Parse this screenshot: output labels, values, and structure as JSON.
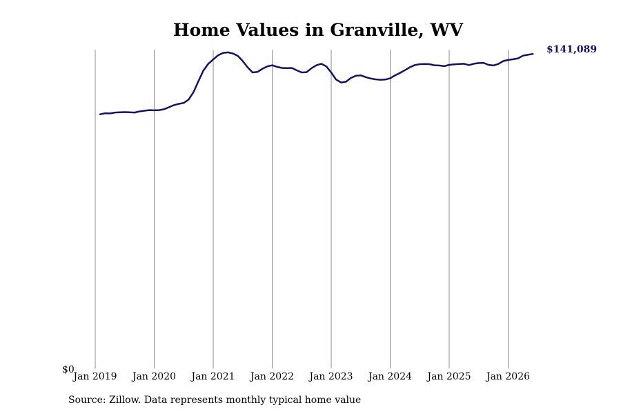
{
  "chart_data": {
    "type": "line",
    "title": "Home Values in Granville, WV",
    "source": "Source: Zillow. Data represents monthly typical home value",
    "xlabel": "",
    "ylabel": "",
    "y_tick_label": "$0",
    "end_label": "$141,089",
    "x_tick_labels": [
      "Jan 2019",
      "Jan 2020",
      "Jan 2021",
      "Jan 2022",
      "Jan 2023",
      "Jan 2024",
      "Jan 2025",
      "Jan 2026"
    ],
    "grid": "vertical",
    "line_color": "#14145e",
    "ylim": [
      0,
      143000
    ],
    "series": [
      {
        "values": [
          [
            2019.083,
            114000
          ],
          [
            2019.167,
            114500
          ],
          [
            2019.25,
            114400
          ],
          [
            2019.333,
            114800
          ],
          [
            2019.417,
            114900
          ],
          [
            2019.5,
            115000
          ],
          [
            2019.583,
            114900
          ],
          [
            2019.667,
            114800
          ],
          [
            2019.75,
            115300
          ],
          [
            2019.833,
            115600
          ],
          [
            2019.917,
            115900
          ],
          [
            2020.0,
            115800
          ],
          [
            2020.083,
            115900
          ],
          [
            2020.167,
            116300
          ],
          [
            2020.25,
            117200
          ],
          [
            2020.333,
            118100
          ],
          [
            2020.417,
            118700
          ],
          [
            2020.5,
            119100
          ],
          [
            2020.583,
            120600
          ],
          [
            2020.667,
            124000
          ],
          [
            2020.75,
            128900
          ],
          [
            2020.833,
            133600
          ],
          [
            2020.917,
            136700
          ],
          [
            2021.0,
            138600
          ],
          [
            2021.083,
            140500
          ],
          [
            2021.167,
            141500
          ],
          [
            2021.25,
            141800
          ],
          [
            2021.333,
            141300
          ],
          [
            2021.417,
            140200
          ],
          [
            2021.5,
            137900
          ],
          [
            2021.583,
            135100
          ],
          [
            2021.667,
            132800
          ],
          [
            2021.75,
            133000
          ],
          [
            2021.833,
            134400
          ],
          [
            2021.917,
            135500
          ],
          [
            2022.0,
            136000
          ],
          [
            2022.083,
            135300
          ],
          [
            2022.167,
            134800
          ],
          [
            2022.25,
            134700
          ],
          [
            2022.333,
            134800
          ],
          [
            2022.417,
            133700
          ],
          [
            2022.5,
            132800
          ],
          [
            2022.583,
            132900
          ],
          [
            2022.667,
            134700
          ],
          [
            2022.75,
            136000
          ],
          [
            2022.833,
            136700
          ],
          [
            2022.917,
            135500
          ],
          [
            2023.0,
            132800
          ],
          [
            2023.083,
            129600
          ],
          [
            2023.167,
            128300
          ],
          [
            2023.25,
            128600
          ],
          [
            2023.333,
            130300
          ],
          [
            2023.417,
            131300
          ],
          [
            2023.5,
            131500
          ],
          [
            2023.583,
            130700
          ],
          [
            2023.667,
            130100
          ],
          [
            2023.75,
            129700
          ],
          [
            2023.833,
            129500
          ],
          [
            2023.917,
            129600
          ],
          [
            2024.0,
            130200
          ],
          [
            2024.083,
            131500
          ],
          [
            2024.167,
            132600
          ],
          [
            2024.25,
            133800
          ],
          [
            2024.333,
            135100
          ],
          [
            2024.417,
            136100
          ],
          [
            2024.5,
            136500
          ],
          [
            2024.583,
            136600
          ],
          [
            2024.667,
            136500
          ],
          [
            2024.75,
            136000
          ],
          [
            2024.833,
            135900
          ],
          [
            2024.917,
            135600
          ],
          [
            2025.0,
            136200
          ],
          [
            2025.083,
            136400
          ],
          [
            2025.167,
            136600
          ],
          [
            2025.25,
            136700
          ],
          [
            2025.333,
            136100
          ],
          [
            2025.417,
            136700
          ],
          [
            2025.5,
            137000
          ],
          [
            2025.583,
            137100
          ],
          [
            2025.667,
            136200
          ],
          [
            2025.75,
            135900
          ],
          [
            2025.833,
            136600
          ],
          [
            2025.917,
            137900
          ],
          [
            2026.0,
            138400
          ],
          [
            2026.083,
            138700
          ],
          [
            2026.167,
            139100
          ],
          [
            2026.25,
            140300
          ],
          [
            2026.333,
            140700
          ],
          [
            2026.417,
            141089
          ]
        ]
      }
    ]
  }
}
